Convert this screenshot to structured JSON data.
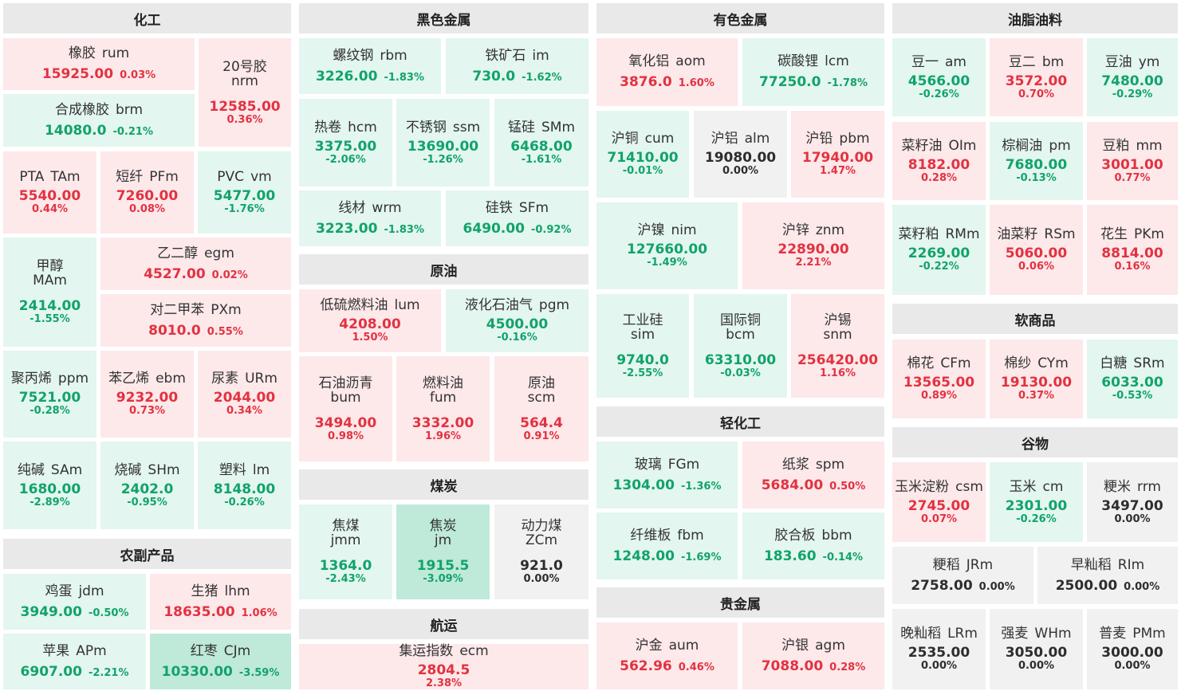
{
  "sections": [
    {
      "id": "chem",
      "title": "化工"
    },
    {
      "id": "ferrous",
      "title": "黑色金属"
    },
    {
      "id": "nonferrous",
      "title": "有色金属"
    },
    {
      "id": "oils",
      "title": "油脂油料"
    },
    {
      "id": "agri",
      "title": "农副产品"
    },
    {
      "id": "crude",
      "title": "原油"
    },
    {
      "id": "coal",
      "title": "煤炭"
    },
    {
      "id": "shipping",
      "title": "航运"
    },
    {
      "id": "light",
      "title": "轻化工"
    },
    {
      "id": "precious",
      "title": "贵金属"
    },
    {
      "id": "soft",
      "title": "软商品"
    },
    {
      "id": "grain",
      "title": "谷物"
    }
  ],
  "cells": [
    {
      "name": "橡胶",
      "sym": "rum",
      "price": "15925.00",
      "chg": "0.03%",
      "dir": "up"
    },
    {
      "name": "20号胶",
      "sym": "nrm",
      "price": "12585.00",
      "chg": "0.36%",
      "dir": "up"
    },
    {
      "name": "合成橡胶",
      "sym": "brm",
      "price": "14080.0",
      "chg": "-0.21%",
      "dir": "dn"
    },
    {
      "name": "PTA",
      "sym": "TAm",
      "price": "5540.00",
      "chg": "0.44%",
      "dir": "up"
    },
    {
      "name": "短纤",
      "sym": "PFm",
      "price": "7260.00",
      "chg": "0.08%",
      "dir": "up"
    },
    {
      "name": "PVC",
      "sym": "vm",
      "price": "5477.00",
      "chg": "-1.76%",
      "dir": "dn"
    },
    {
      "name": "甲醇",
      "sym": "MAm",
      "price": "2414.00",
      "chg": "-1.55%",
      "dir": "dn"
    },
    {
      "name": "乙二醇",
      "sym": "egm",
      "price": "4527.00",
      "chg": "0.02%",
      "dir": "up"
    },
    {
      "name": "对二甲苯",
      "sym": "PXm",
      "price": "8010.0",
      "chg": "0.55%",
      "dir": "up"
    },
    {
      "name": "聚丙烯",
      "sym": "ppm",
      "price": "7521.00",
      "chg": "-0.28%",
      "dir": "dn"
    },
    {
      "name": "苯乙烯",
      "sym": "ebm",
      "price": "9232.00",
      "chg": "0.73%",
      "dir": "up"
    },
    {
      "name": "尿素",
      "sym": "URm",
      "price": "2044.00",
      "chg": "0.34%",
      "dir": "up"
    },
    {
      "name": "纯碱",
      "sym": "SAm",
      "price": "1680.00",
      "chg": "-2.89%",
      "dir": "dn"
    },
    {
      "name": "烧碱",
      "sym": "SHm",
      "price": "2402.0",
      "chg": "-0.95%",
      "dir": "dn"
    },
    {
      "name": "塑料",
      "sym": "lm",
      "price": "8148.00",
      "chg": "-0.26%",
      "dir": "dn"
    },
    {
      "name": "鸡蛋",
      "sym": "jdm",
      "price": "3949.00",
      "chg": "-0.50%",
      "dir": "dn"
    },
    {
      "name": "生猪",
      "sym": "lhm",
      "price": "18635.00",
      "chg": "1.06%",
      "dir": "up"
    },
    {
      "name": "苹果",
      "sym": "APm",
      "price": "6907.00",
      "chg": "-2.21%",
      "dir": "dn"
    },
    {
      "name": "红枣",
      "sym": "CJm",
      "price": "10330.00",
      "chg": "-3.59%",
      "dir": "dn2"
    },
    {
      "name": "螺纹钢",
      "sym": "rbm",
      "price": "3226.00",
      "chg": "-1.83%",
      "dir": "dn"
    },
    {
      "name": "铁矿石",
      "sym": "im",
      "price": "730.0",
      "chg": "-1.62%",
      "dir": "dn"
    },
    {
      "name": "热卷",
      "sym": "hcm",
      "price": "3375.00",
      "chg": "-2.06%",
      "dir": "dn"
    },
    {
      "name": "不锈钢",
      "sym": "ssm",
      "price": "13690.00",
      "chg": "-1.26%",
      "dir": "dn"
    },
    {
      "name": "锰硅",
      "sym": "SMm",
      "price": "6468.00",
      "chg": "-1.61%",
      "dir": "dn"
    },
    {
      "name": "线材",
      "sym": "wrm",
      "price": "3223.00",
      "chg": "-1.83%",
      "dir": "dn"
    },
    {
      "name": "硅铁",
      "sym": "SFm",
      "price": "6490.00",
      "chg": "-0.92%",
      "dir": "dn"
    },
    {
      "name": "低硫燃料油",
      "sym": "lum",
      "price": "4208.00",
      "chg": "1.50%",
      "dir": "up"
    },
    {
      "name": "液化石油气",
      "sym": "pgm",
      "price": "4500.00",
      "chg": "-0.16%",
      "dir": "dn"
    },
    {
      "name": "石油沥青",
      "sym": "bum",
      "price": "3494.00",
      "chg": "0.98%",
      "dir": "up"
    },
    {
      "name": "燃料油",
      "sym": "fum",
      "price": "3332.00",
      "chg": "1.96%",
      "dir": "up"
    },
    {
      "name": "原油",
      "sym": "scm",
      "price": "564.4",
      "chg": "0.91%",
      "dir": "up"
    },
    {
      "name": "焦煤",
      "sym": "jmm",
      "price": "1364.0",
      "chg": "-2.43%",
      "dir": "dn"
    },
    {
      "name": "焦炭",
      "sym": "jm",
      "price": "1915.5",
      "chg": "-3.09%",
      "dir": "dn2"
    },
    {
      "name": "动力煤",
      "sym": "ZCm",
      "price": "921.0",
      "chg": "0.00%",
      "dir": "fl"
    },
    {
      "name": "集运指数",
      "sym": "ecm",
      "price": "2804.5",
      "chg": "2.38%",
      "dir": "up"
    },
    {
      "name": "氧化铝",
      "sym": "aom",
      "price": "3876.0",
      "chg": "1.60%",
      "dir": "up"
    },
    {
      "name": "碳酸锂",
      "sym": "lcm",
      "price": "77250.0",
      "chg": "-1.78%",
      "dir": "dn"
    },
    {
      "name": "沪铜",
      "sym": "cum",
      "price": "71410.00",
      "chg": "-0.01%",
      "dir": "dn"
    },
    {
      "name": "沪铝",
      "sym": "alm",
      "price": "19080.00",
      "chg": "0.00%",
      "dir": "fl"
    },
    {
      "name": "沪铅",
      "sym": "pbm",
      "price": "17940.00",
      "chg": "1.47%",
      "dir": "up"
    },
    {
      "name": "沪镍",
      "sym": "nim",
      "price": "127660.00",
      "chg": "-1.49%",
      "dir": "dn"
    },
    {
      "name": "沪锌",
      "sym": "znm",
      "price": "22890.00",
      "chg": "2.21%",
      "dir": "up"
    },
    {
      "name": "工业硅",
      "sym": "sim",
      "price": "9740.0",
      "chg": "-2.55%",
      "dir": "dn"
    },
    {
      "name": "国际铜",
      "sym": "bcm",
      "price": "63310.00",
      "chg": "-0.03%",
      "dir": "dn"
    },
    {
      "name": "沪锡",
      "sym": "snm",
      "price": "256420.00",
      "chg": "1.16%",
      "dir": "up"
    },
    {
      "name": "玻璃",
      "sym": "FGm",
      "price": "1304.00",
      "chg": "-1.36%",
      "dir": "dn"
    },
    {
      "name": "纸浆",
      "sym": "spm",
      "price": "5684.00",
      "chg": "0.50%",
      "dir": "up"
    },
    {
      "name": "纤维板",
      "sym": "fbm",
      "price": "1248.00",
      "chg": "-1.69%",
      "dir": "dn"
    },
    {
      "name": "胶合板",
      "sym": "bbm",
      "price": "183.60",
      "chg": "-0.14%",
      "dir": "dn"
    },
    {
      "name": "沪金",
      "sym": "aum",
      "price": "562.96",
      "chg": "0.46%",
      "dir": "up"
    },
    {
      "name": "沪银",
      "sym": "agm",
      "price": "7088.00",
      "chg": "0.28%",
      "dir": "up"
    },
    {
      "name": "豆一",
      "sym": "am",
      "price": "4566.00",
      "chg": "-0.26%",
      "dir": "dn"
    },
    {
      "name": "豆二",
      "sym": "bm",
      "price": "3572.00",
      "chg": "0.70%",
      "dir": "up"
    },
    {
      "name": "豆油",
      "sym": "ym",
      "price": "7480.00",
      "chg": "-0.29%",
      "dir": "dn"
    },
    {
      "name": "菜籽油",
      "sym": "OIm",
      "price": "8182.00",
      "chg": "0.28%",
      "dir": "up"
    },
    {
      "name": "棕榈油",
      "sym": "pm",
      "price": "7680.00",
      "chg": "-0.13%",
      "dir": "dn"
    },
    {
      "name": "豆粕",
      "sym": "mm",
      "price": "3001.00",
      "chg": "0.77%",
      "dir": "up"
    },
    {
      "name": "菜籽粕",
      "sym": "RMm",
      "price": "2269.00",
      "chg": "-0.22%",
      "dir": "dn"
    },
    {
      "name": "油菜籽",
      "sym": "RSm",
      "price": "5060.00",
      "chg": "0.06%",
      "dir": "up"
    },
    {
      "name": "花生",
      "sym": "PKm",
      "price": "8814.00",
      "chg": "0.16%",
      "dir": "up"
    },
    {
      "name": "棉花",
      "sym": "CFm",
      "price": "13565.00",
      "chg": "0.89%",
      "dir": "up"
    },
    {
      "name": "棉纱",
      "sym": "CYm",
      "price": "19130.00",
      "chg": "0.37%",
      "dir": "up"
    },
    {
      "name": "白糖",
      "sym": "SRm",
      "price": "6033.00",
      "chg": "-0.53%",
      "dir": "dn"
    },
    {
      "name": "玉米淀粉",
      "sym": "csm",
      "price": "2745.00",
      "chg": "0.07%",
      "dir": "up"
    },
    {
      "name": "玉米",
      "sym": "cm",
      "price": "2301.00",
      "chg": "-0.26%",
      "dir": "dn"
    },
    {
      "name": "粳米",
      "sym": "rrm",
      "price": "3497.00",
      "chg": "0.00%",
      "dir": "fl"
    },
    {
      "name": "粳稻",
      "sym": "JRm",
      "price": "2758.00",
      "chg": "0.00%",
      "dir": "fl"
    },
    {
      "name": "早籼稻",
      "sym": "RIm",
      "price": "2500.00",
      "chg": "0.00%",
      "dir": "fl"
    },
    {
      "name": "晚籼稻",
      "sym": "LRm",
      "price": "2535.00",
      "chg": "0.00%",
      "dir": "fl"
    },
    {
      "name": "强麦",
      "sym": "WHm",
      "price": "3050.00",
      "chg": "0.00%",
      "dir": "fl"
    },
    {
      "name": "普麦",
      "sym": "PMm",
      "price": "3000.00",
      "chg": "0.00%",
      "dir": "fl"
    }
  ]
}
